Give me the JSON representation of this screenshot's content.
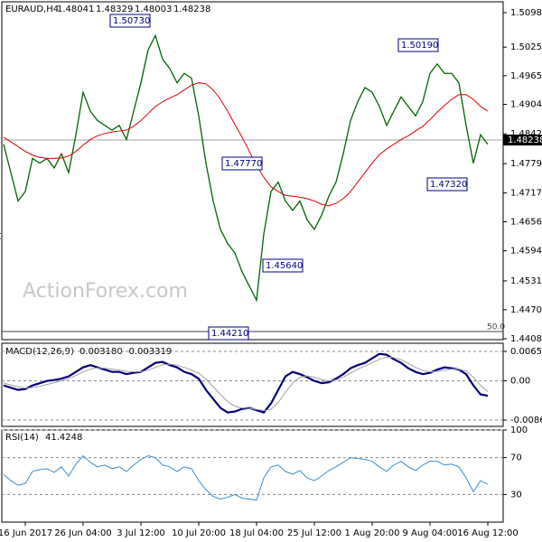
{
  "header": {
    "symbol": "EURAUD,H4",
    "open": "1.48041",
    "high": "1.48329",
    "low": "1.48003",
    "close": "1.48238"
  },
  "watermark": "ActionForex.com",
  "annotations": [
    "1.50730",
    "1.50190",
    "1.47770",
    "1.47320",
    "1.45640",
    "1.44210",
    "50",
    "50.0"
  ],
  "chart_data": [
    {
      "type": "line",
      "series": [
        {
          "name": "EURAUD,H4",
          "color": "#006400",
          "values": [
            1.482,
            1.476,
            1.47,
            1.472,
            1.479,
            1.478,
            1.479,
            1.477,
            1.48,
            1.476,
            1.484,
            1.493,
            1.489,
            1.487,
            1.486,
            1.485,
            1.486,
            1.483,
            1.489,
            1.495,
            1.502,
            1.505,
            1.5,
            1.498,
            1.495,
            1.497,
            1.496,
            1.488,
            1.478,
            1.47,
            1.464,
            1.461,
            1.459,
            1.455,
            1.452,
            1.449,
            1.463,
            1.472,
            1.474,
            1.47,
            1.468,
            1.47,
            1.466,
            1.464,
            1.467,
            1.471,
            1.474,
            1.48,
            1.487,
            1.491,
            1.494,
            1.493,
            1.49,
            1.486,
            1.489,
            1.492,
            1.49,
            1.488,
            1.491,
            1.497,
            1.499,
            1.497,
            1.497,
            1.495,
            1.486,
            1.478,
            1.484,
            1.482
          ]
        },
        {
          "name": "MA",
          "color": "#e00000",
          "values": [
            1.4835,
            1.4825,
            1.4815,
            1.4805,
            1.4797,
            1.4792,
            1.479,
            1.479,
            1.4791,
            1.4795,
            1.4805,
            1.4818,
            1.483,
            1.4838,
            1.4843,
            1.4846,
            1.4848,
            1.485,
            1.4858,
            1.487,
            1.4885,
            1.49,
            1.491,
            1.4918,
            1.4925,
            1.4935,
            1.4945,
            1.495,
            1.4948,
            1.4935,
            1.4915,
            1.489,
            1.4862,
            1.4835,
            1.4805,
            1.4775,
            1.475,
            1.473,
            1.472,
            1.4712,
            1.471,
            1.4708,
            1.4705,
            1.47,
            1.4693,
            1.469,
            1.4695,
            1.4705,
            1.472,
            1.474,
            1.476,
            1.478,
            1.4798,
            1.481,
            1.482,
            1.483,
            1.4838,
            1.4848,
            1.4858,
            1.4872,
            1.4888,
            1.4902,
            1.4915,
            1.4925,
            1.4925,
            1.4915,
            1.49,
            1.489
          ]
        }
      ],
      "ylim": [
        1.44085,
        1.50985
      ],
      "yticks": [
        {
          "value": 1.50985,
          "label": "1.50985"
        },
        {
          "value": 1.50255,
          "label": "1.50255"
        },
        {
          "value": 1.4965,
          "label": "1.49650"
        },
        {
          "value": 1.49045,
          "label": "1.49045"
        },
        {
          "value": 1.4842,
          "label": "1.48420"
        },
        {
          "value": 1.4779,
          "label": "1.47790"
        },
        {
          "value": 1.4717,
          "label": "1.47170"
        },
        {
          "value": 1.4656,
          "label": "1.46560"
        },
        {
          "value": 1.45945,
          "label": "1.45945"
        },
        {
          "value": 1.4531,
          "label": "1.45310"
        },
        {
          "value": 1.447,
          "label": "1.44700"
        },
        {
          "value": 1.44085,
          "label": "1.44085"
        }
      ]
    },
    {
      "type": "line",
      "title": "MACD(12,26,9)",
      "subtitle": "0.003180 -0.003319",
      "series": [
        {
          "name": "MACD",
          "color": "#00007a",
          "values": [
            -0.001,
            -0.0015,
            -0.002,
            -0.0018,
            -0.001,
            -0.0005,
            0.0,
            0.0002,
            0.0005,
            0.001,
            0.002,
            0.003,
            0.0035,
            0.003,
            0.0025,
            0.002,
            0.002,
            0.0015,
            0.0018,
            0.002,
            0.003,
            0.004,
            0.0042,
            0.0035,
            0.003,
            0.002,
            0.0015,
            0.0005,
            -0.002,
            -0.004,
            -0.006,
            -0.007,
            -0.0068,
            -0.0062,
            -0.006,
            -0.0065,
            -0.007,
            -0.005,
            -0.002,
            0.001,
            0.002,
            0.0015,
            0.0008,
            0.0,
            -0.0005,
            -0.0003,
            0.0005,
            0.0015,
            0.0028,
            0.0035,
            0.004,
            0.005,
            0.006,
            0.0058,
            0.0048,
            0.004,
            0.0028,
            0.002,
            0.0015,
            0.0018,
            0.0025,
            0.003,
            0.0028,
            0.0025,
            0.0015,
            -0.001,
            -0.003,
            -0.0033
          ]
        },
        {
          "name": "Signal",
          "color": "#a0a0a0",
          "values": [
            -0.0005,
            -0.0009,
            -0.0013,
            -0.0016,
            -0.0015,
            -0.0012,
            -0.0008,
            -0.0004,
            0.0,
            0.0005,
            0.0012,
            0.002,
            0.0026,
            0.0029,
            0.0028,
            0.0026,
            0.0024,
            0.0021,
            0.002,
            0.002,
            0.0024,
            0.003,
            0.0036,
            0.0037,
            0.0035,
            0.003,
            0.0024,
            0.0017,
            0.0004,
            -0.0013,
            -0.003,
            -0.0046,
            -0.0056,
            -0.006,
            -0.0061,
            -0.0063,
            -0.0066,
            -0.0063,
            -0.0048,
            -0.0025,
            -0.0005,
            0.0008,
            0.0011,
            0.0008,
            0.0003,
            0.0,
            0.0002,
            0.0008,
            0.0017,
            0.0026,
            0.0033,
            0.004,
            0.0048,
            0.0053,
            0.0052,
            0.0047,
            0.0039,
            0.003,
            0.0023,
            0.002,
            0.0021,
            0.0024,
            0.0026,
            0.0026,
            0.0022,
            0.0008,
            -0.001,
            -0.0024
          ]
        }
      ],
      "ylim": [
        -0.008684,
        0.006542
      ],
      "yticks": [
        0.006542,
        {
          "value": 0,
          "label": "0.00"
        },
        -0.008684
      ]
    },
    {
      "type": "line",
      "title": "RSI(14)",
      "subtitle": "41.4248",
      "categories": [
        null,
        null,
        null,
        "16 Jun 2017",
        null,
        null,
        null,
        null,
        null,
        null,
        null,
        "26 Jun 04:00",
        null,
        null,
        null,
        null,
        null,
        null,
        null,
        "3 Jul 12:00",
        null,
        null,
        null,
        null,
        null,
        null,
        null,
        "10 Jul 20:00",
        null,
        null,
        null,
        null,
        null,
        null,
        null,
        "18 Jul 04:00",
        null,
        null,
        null,
        null,
        null,
        null,
        null,
        "25 Jul 12:00",
        null,
        null,
        null,
        null,
        null,
        null,
        null,
        "1 Aug 20:00",
        null,
        null,
        null,
        null,
        null,
        null,
        null,
        "9 Aug 04:00",
        null,
        null,
        null,
        null,
        null,
        null,
        null,
        "16 Aug 12:00"
      ],
      "series": [
        {
          "name": "RSI",
          "color": "#3a8fd0",
          "values": [
            52,
            45,
            40,
            42,
            55,
            57,
            58,
            54,
            60,
            50,
            63,
            72,
            65,
            60,
            62,
            58,
            60,
            55,
            62,
            68,
            72,
            70,
            62,
            60,
            55,
            60,
            58,
            45,
            35,
            28,
            25,
            27,
            30,
            26,
            25,
            24,
            48,
            60,
            62,
            55,
            52,
            56,
            48,
            45,
            50,
            56,
            60,
            65,
            70,
            69,
            68,
            66,
            60,
            55,
            62,
            66,
            60,
            56,
            62,
            66,
            66,
            62,
            63,
            60,
            48,
            33,
            45,
            41
          ]
        }
      ],
      "ylim": [
        0,
        100
      ],
      "yticks": [
        100,
        70,
        30
      ]
    }
  ]
}
